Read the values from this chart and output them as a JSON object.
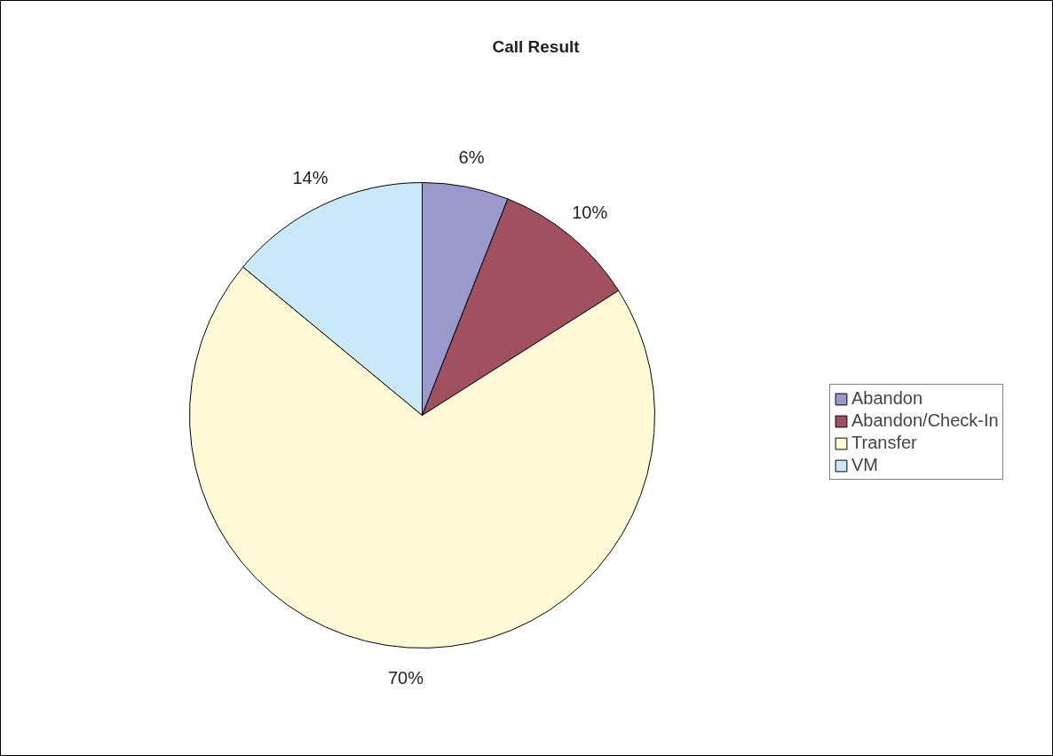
{
  "chart_data": {
    "type": "pie",
    "title": "Call Result",
    "categories": [
      "Abandon",
      "Abandon/Check-In",
      "Transfer",
      "VM"
    ],
    "values": [
      6,
      10,
      70,
      14
    ],
    "value_labels": [
      "6%",
      "10%",
      "70%",
      "14%"
    ],
    "colors": [
      "#9999cc",
      "#a0505f",
      "#fff9d6",
      "#c9e9f9"
    ],
    "legend": "right"
  }
}
